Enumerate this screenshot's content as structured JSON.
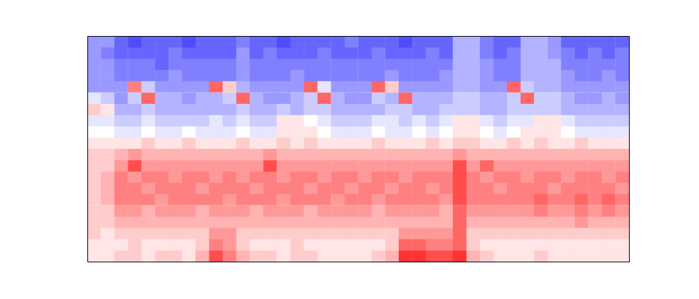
{
  "chart_data": {
    "type": "heatmap",
    "color": "bwr",
    "tick_labels": false,
    "zlim": [
      -10,
      10
    ],
    "cells": [
      [
        -4,
        -4,
        -6,
        -7,
        -6,
        -6,
        -6,
        -7,
        -6,
        -6,
        -6,
        -5,
        -6,
        -6,
        -7,
        -6,
        -6,
        -6,
        -6,
        -5,
        -6,
        -6,
        -6,
        -7,
        -6,
        -6,
        -6,
        -3,
        -3,
        -5,
        -6,
        -6,
        -3,
        -3,
        -4,
        -6,
        -6,
        -6,
        -6,
        -6
      ],
      [
        -4,
        -5,
        -6,
        -6,
        -6,
        -6,
        -5,
        -6,
        -6,
        -6,
        -6,
        -4,
        -6,
        -5,
        -6,
        -6,
        -6,
        -5,
        -6,
        -6,
        -6,
        -5,
        -6,
        -6,
        -6,
        -5,
        -6,
        -3,
        -3,
        -5,
        -6,
        -5,
        -3,
        -3,
        -4,
        -5,
        -6,
        -5,
        -6,
        -5
      ],
      [
        -4,
        -4,
        -5,
        -5,
        -5,
        -6,
        -5,
        -5,
        -5,
        -5,
        -5,
        -4,
        -5,
        -5,
        -5,
        -5,
        -5,
        -5,
        -5,
        -5,
        -5,
        -5,
        -5,
        -5,
        -5,
        -5,
        -5,
        -3,
        -3,
        -4,
        -5,
        -5,
        -3,
        -3,
        -3,
        -5,
        -5,
        -5,
        -5,
        -5
      ],
      [
        -4,
        -4,
        -5,
        -5,
        -5,
        -5,
        -4,
        -5,
        -5,
        -5,
        -5,
        -4,
        -5,
        -5,
        -5,
        -4,
        -5,
        -5,
        -5,
        -5,
        -5,
        -5,
        -4,
        -5,
        -5,
        -5,
        -4,
        -3,
        -3,
        -4,
        -5,
        -5,
        -3,
        -3,
        -3,
        -4,
        -5,
        -5,
        -4,
        -5
      ],
      [
        -4,
        -4,
        -4,
        5,
        -2,
        -4,
        -4,
        -4,
        -4,
        6,
        2,
        -3,
        -4,
        -4,
        -4,
        -4,
        6,
        -1,
        -4,
        -4,
        -4,
        6,
        2,
        -4,
        -4,
        -4,
        -4,
        -3,
        -3,
        -4,
        -4,
        6,
        -2,
        -3,
        -3,
        -4,
        -4,
        -4,
        -4,
        -4
      ],
      [
        -1,
        -2,
        -4,
        -2,
        6,
        -3,
        -3,
        -4,
        -3,
        -3,
        -2,
        6,
        -3,
        -4,
        -4,
        -3,
        -2,
        6,
        -3,
        -4,
        -4,
        -2,
        -3,
        6,
        -3,
        -3,
        -3,
        -2,
        -2,
        -3,
        -3,
        -2,
        6,
        -2,
        -2,
        -3,
        -4,
        -4,
        -3,
        -4
      ],
      [
        2,
        1,
        -3,
        -3,
        -2,
        -3,
        -3,
        -3,
        -3,
        -3,
        -3,
        -2,
        -3,
        -3,
        -2,
        -3,
        -2,
        -2,
        -3,
        -3,
        -3,
        -3,
        -2,
        -2,
        -3,
        -3,
        -2,
        -2,
        -2,
        -3,
        -3,
        -2,
        -2,
        -2,
        -2,
        -3,
        -3,
        -3,
        -3,
        -3
      ],
      [
        -1,
        -1,
        -2,
        -2,
        -1,
        -2,
        -2,
        -2,
        -2,
        -1,
        -2,
        -1,
        -2,
        -2,
        1,
        1,
        0,
        -1,
        -2,
        -2,
        -2,
        -1,
        -1,
        -2,
        -1,
        -2,
        -1,
        1,
        1,
        -1,
        -2,
        -1,
        -1,
        1,
        1,
        -1,
        -2,
        -2,
        -2,
        -2
      ],
      [
        0,
        0,
        -1,
        -1,
        0,
        -1,
        -1,
        0,
        -1,
        -1,
        -1,
        0,
        -1,
        -1,
        1,
        1,
        1,
        0,
        -1,
        -1,
        -1,
        0,
        -1,
        -1,
        0,
        -1,
        0,
        1,
        1,
        0,
        -1,
        0,
        1,
        1,
        1,
        0,
        -1,
        -1,
        -1,
        -1
      ],
      [
        1,
        1,
        1,
        1,
        2,
        1,
        1,
        2,
        1,
        1,
        1,
        2,
        1,
        1,
        2,
        1,
        2,
        1,
        1,
        1,
        1,
        2,
        1,
        1,
        1,
        2,
        1,
        2,
        2,
        1,
        1,
        2,
        1,
        2,
        1,
        1,
        2,
        1,
        1,
        1
      ],
      [
        2,
        2,
        3,
        4,
        3,
        3,
        3,
        3,
        3,
        3,
        3,
        3,
        3,
        4,
        3,
        3,
        3,
        3,
        3,
        3,
        3,
        3,
        3,
        3,
        3,
        3,
        3,
        4,
        3,
        3,
        3,
        3,
        3,
        3,
        3,
        3,
        3,
        3,
        3,
        3
      ],
      [
        2,
        2,
        4,
        7,
        4,
        4,
        4,
        4,
        4,
        4,
        4,
        4,
        4,
        7,
        4,
        4,
        4,
        4,
        4,
        4,
        4,
        4,
        4,
        4,
        4,
        4,
        4,
        7,
        4,
        6,
        4,
        4,
        4,
        4,
        4,
        4,
        4,
        4,
        4,
        4
      ],
      [
        2,
        3,
        5,
        4,
        5,
        5,
        4,
        5,
        5,
        4,
        5,
        4,
        5,
        5,
        4,
        5,
        5,
        4,
        5,
        5,
        4,
        5,
        5,
        4,
        5,
        5,
        5,
        7,
        5,
        4,
        5,
        5,
        4,
        5,
        5,
        4,
        5,
        5,
        4,
        5
      ],
      [
        2,
        3,
        5,
        5,
        4,
        5,
        5,
        5,
        4,
        5,
        5,
        5,
        4,
        5,
        5,
        5,
        4,
        5,
        5,
        4,
        5,
        5,
        4,
        5,
        5,
        4,
        5,
        7,
        5,
        5,
        4,
        5,
        5,
        5,
        4,
        5,
        5,
        5,
        5,
        4
      ],
      [
        2,
        3,
        5,
        5,
        5,
        4,
        5,
        5,
        5,
        5,
        4,
        5,
        5,
        5,
        4,
        5,
        5,
        5,
        4,
        5,
        5,
        4,
        5,
        5,
        5,
        5,
        4,
        7,
        5,
        5,
        5,
        5,
        5,
        6,
        5,
        5,
        6,
        5,
        6,
        5
      ],
      [
        2,
        2,
        4,
        4,
        3,
        4,
        4,
        4,
        3,
        4,
        4,
        4,
        3,
        4,
        4,
        4,
        3,
        4,
        4,
        4,
        4,
        3,
        4,
        4,
        4,
        4,
        3,
        6,
        4,
        4,
        4,
        4,
        4,
        5,
        4,
        4,
        5,
        4,
        5,
        4
      ],
      [
        2,
        2,
        3,
        3,
        3,
        3,
        3,
        3,
        3,
        3,
        3,
        3,
        3,
        3,
        3,
        3,
        3,
        3,
        3,
        3,
        3,
        3,
        3,
        3,
        3,
        3,
        3,
        6,
        3,
        3,
        3,
        3,
        3,
        3,
        3,
        3,
        4,
        3,
        3,
        3
      ],
      [
        2,
        1,
        2,
        2,
        2,
        2,
        2,
        2,
        2,
        4,
        4,
        2,
        2,
        2,
        2,
        2,
        2,
        2,
        2,
        2,
        2,
        2,
        2,
        4,
        4,
        4,
        4,
        6,
        2,
        2,
        2,
        2,
        2,
        2,
        2,
        2,
        2,
        2,
        2,
        2
      ],
      [
        1,
        1,
        1,
        2,
        1,
        1,
        1,
        1,
        2,
        5,
        4,
        2,
        1,
        1,
        1,
        2,
        1,
        1,
        1,
        1,
        1,
        1,
        2,
        6,
        6,
        5,
        5,
        6,
        2,
        1,
        1,
        1,
        1,
        1,
        1,
        1,
        1,
        1,
        1,
        1
      ],
      [
        1,
        1,
        2,
        2,
        1,
        2,
        2,
        1,
        3,
        7,
        5,
        3,
        2,
        2,
        1,
        2,
        2,
        1,
        1,
        1,
        1,
        2,
        3,
        8,
        8,
        7,
        7,
        8,
        3,
        2,
        1,
        1,
        1,
        2,
        1,
        1,
        1,
        1,
        1,
        1
      ]
    ]
  }
}
